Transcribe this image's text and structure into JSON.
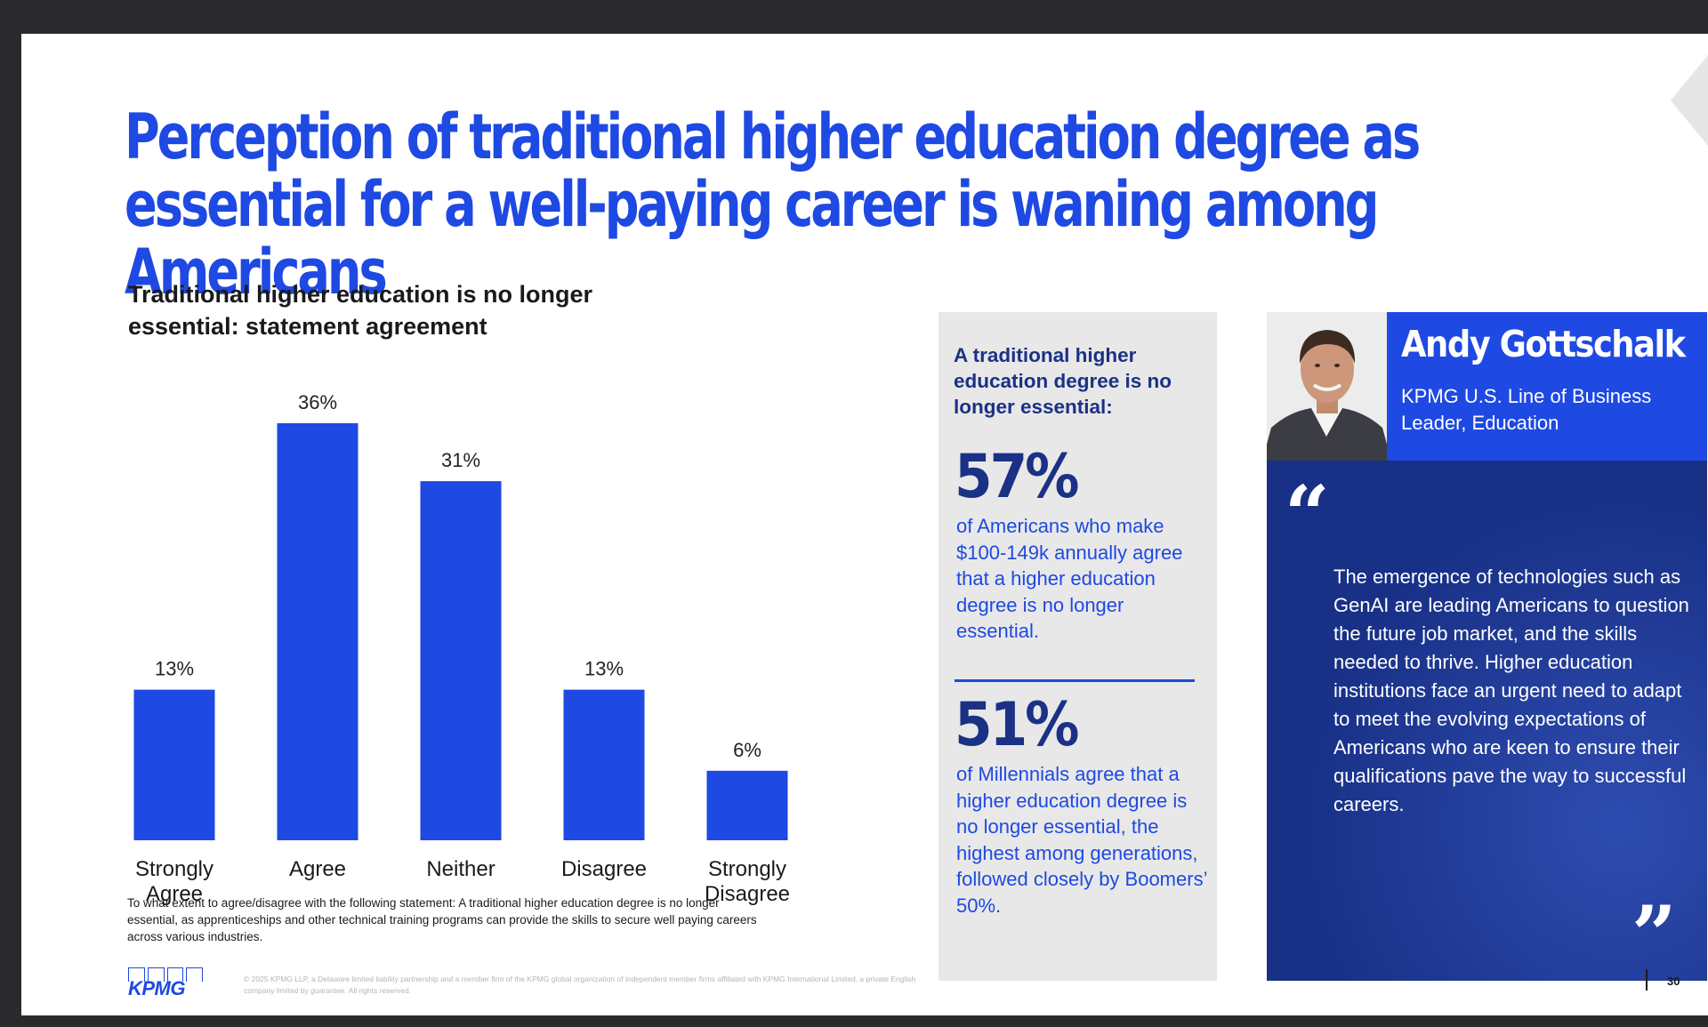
{
  "title": "Perception of traditional higher education degree as essential for a well-paying career is waning among Americans",
  "chart_data": {
    "type": "bar",
    "title": "Traditional higher education is no longer essential: statement agreement",
    "categories": [
      "Strongly Agree",
      "Agree",
      "Neither",
      "Disagree",
      "Strongly Disagree"
    ],
    "values": [
      13,
      36,
      31,
      13,
      6
    ],
    "data_labels": [
      "13%",
      "36%",
      "31%",
      "13%",
      "6%"
    ],
    "unit": "%",
    "ylim": [
      0,
      36
    ],
    "bar_color": "#1e49e2",
    "grid": false,
    "legend": "none",
    "xlabel": "",
    "ylabel": ""
  },
  "chart_note": "To what extent to agree/disagree with the following statement: A traditional higher education degree is no longer essential, as apprenticeships and other technical training programs can provide the skills to secure well paying careers across various industries.",
  "stats": {
    "heading": "A traditional higher education degree is no longer essential:",
    "items": [
      {
        "value": "57%",
        "description": "of Americans who make $100-149k annually agree that a higher education degree is no longer essential."
      },
      {
        "value": "51%",
        "description": "of Millennials agree that a higher education degree is no longer essential, the highest among generations, followed closely by Boomers’ 50%."
      }
    ]
  },
  "profile": {
    "name": "Andy Gottschalk",
    "role": "KPMG U.S. Line of Business Leader, Education",
    "quote_open": "“",
    "quote": "The emergence of technologies such as GenAI are leading Americans to question the future job market, and the skills needed to thrive. Higher education institutions face an urgent need to adapt to meet the evolving expectations of Americans who are keen to ensure their qualifications pave the way to successful careers.",
    "quote_close": "”"
  },
  "footer": {
    "logo": "KPMG",
    "legal": "© 2025 KPMG LLP, a Delaware limited liability partnership and a member firm of the KPMG global organization of independent member firms affiliated with KPMG International Limited, a private English company limited by guarantee. All rights reserved.",
    "page_number": "30"
  },
  "colors": {
    "primary_blue": "#1e49e2",
    "dark_blue": "#1a3186",
    "panel_gray": "#e8e8e8",
    "quote_navy": "#183086"
  },
  "icons": {
    "next_slide": "chevron-right-icon",
    "portrait": "portrait-photo"
  }
}
